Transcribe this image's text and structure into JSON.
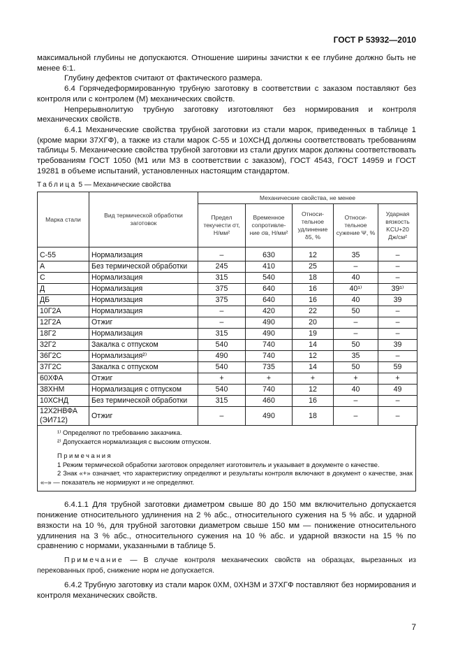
{
  "header": "ГОСТ Р 53932—2010",
  "paragraphs_top": [
    "максимальной глубины не допускаются. Отношение ширины зачистки к ее глубине должно быть не менее 6:1.",
    "Глубину дефектов считают от фактического размера.",
    "6.4 Горячедеформированную трубную заготовку в соответствии с заказом поставляют без контроля или с контролем (М) механических свойств.",
    "Непрерывнолитую трубную заготовку изготовляют без нормирования и контроля механических свойств.",
    "6.4.1 Механические свойства трубной заготовки из стали марок, приведенных в таблице 1 (кроме марки 37ХГФ), а также из стали марок С-55 и 10ХСНД должны соответствовать требованиям таблицы 5. Механические свойства трубной заготовки из стали других марок должны соответствовать требованиям ГОСТ 1050 (М1 или М3 в соответствии с заказом), ГОСТ 4543, ГОСТ 14959 и ГОСТ 19281 в объеме испытаний, установленных настоящим стандартом."
  ],
  "table": {
    "caption_word": "Таблица",
    "caption_rest": "5 — Механические свойства",
    "col_grade": "Марка стали",
    "col_treatment": "Вид термической обработки заготовок",
    "group_header": "Механические свойства, не менее",
    "sub_headers": [
      "Предел текучести σт, Н/мм²",
      "Временное сопротивле-ние σв, Н/мм²",
      "Относи-тельное удлинение δ5, %",
      "Относи-тельное сужение Ψ, %",
      "Ударная вязкость KCU+20 Дж/см²"
    ],
    "rows": [
      [
        "С-55",
        "Нормализация",
        "–",
        "630",
        "12",
        "35",
        "–"
      ],
      [
        "А",
        "Без термической обработки",
        "245",
        "410",
        "25",
        "–",
        "–"
      ],
      [
        "С",
        "Нормализация",
        "315",
        "540",
        "18",
        "40",
        "–"
      ],
      [
        "Д",
        "Нормализация",
        "375",
        "640",
        "16",
        "40¹⁾",
        "39¹⁾"
      ],
      [
        "ДБ",
        "Нормализация",
        "375",
        "640",
        "16",
        "40",
        "39"
      ],
      [
        "10Г2А",
        "Нормализация",
        "–",
        "420",
        "22",
        "50",
        "–"
      ],
      [
        "12Г2А",
        "Отжиг",
        "–",
        "490",
        "20",
        "–",
        "–"
      ],
      [
        "18Г2",
        "Нормализация",
        "315",
        "490",
        "19",
        "–",
        "–"
      ],
      [
        "32Г2",
        "Закалка с отпуском",
        "540",
        "740",
        "14",
        "50",
        "39"
      ],
      [
        "36Г2С",
        "Нормализация²⁾",
        "490",
        "740",
        "12",
        "35",
        "–"
      ],
      [
        "37Г2С",
        "Закалка с отпуском",
        "540",
        "735",
        "14",
        "50",
        "59"
      ],
      [
        "60ХФА",
        "Отжиг",
        "+",
        "+",
        "+",
        "+",
        "+"
      ],
      [
        "38ХНМ",
        "Нормализация с отпуском",
        "540",
        "740",
        "12",
        "40",
        "49"
      ],
      [
        "10ХСНД",
        "Без термической обработки",
        "315",
        "460",
        "16",
        "–",
        "–"
      ],
      [
        "12Х2НВФА (ЭИ712)",
        "Отжиг",
        "–",
        "490",
        "18",
        "–",
        "–"
      ]
    ],
    "footnotes": [
      "¹⁾ Определяют по требованию заказчика.",
      "²⁾ Допускается нормализация с высоким отпуском."
    ],
    "notes_title": "Примечания",
    "notes": [
      "1 Режим термической обработки заготовок определяет изготовитель и указывает в документе о качестве.",
      "2 Знак «+» означает, что характеристику определяют и результаты контроля включают в документ о качестве, знак «–» — показатель не нормируют и не определяют."
    ]
  },
  "paragraphs_bottom": {
    "p1": "6.4.1.1 Для трубной заготовки диаметром свыше 80 до 150 мм включительно допускается понижение относительного удлинения на 2 % абс., относительного сужения на 5 % абс. и ударной вязкости на 10 %, для трубной заготовки диаметром свыше 150 мм — понижение относительного удлинения на 3 % абс., относительного сужения на 10 % абс. и ударной вязкости на 15 % по сравнению с нормами, указанными в таблице 5.",
    "note_word": "Примечание",
    "note_text": " — В случае контроля механических свойств на образцах, вырезанных из перекованных проб, снижение норм не допускается.",
    "p2": "6.4.2 Трубную заготовку из стали марок 0ХМ, 0ХН3М и 37ХГФ поставляют без нормирования и контроля механических свойств."
  },
  "page_number": "7"
}
